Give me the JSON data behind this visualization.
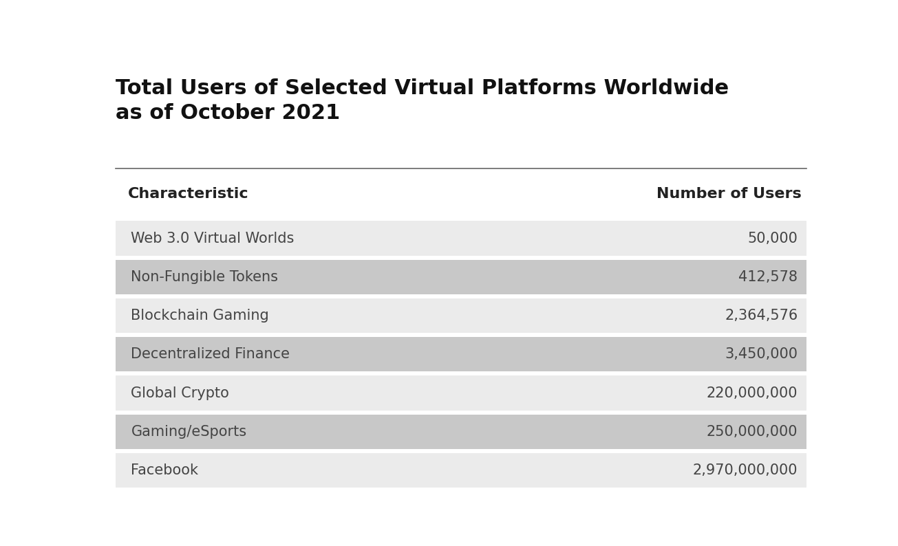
{
  "title": "Total Users of Selected Virtual Platforms Worldwide\nas of October 2021",
  "col1_header": "Characteristic",
  "col2_header": "Number of Users",
  "rows": [
    {
      "label": "Web 3.0 Virtual Worlds",
      "value": "50,000",
      "bg": "#ebebeb"
    },
    {
      "label": "Non-Fungible Tokens",
      "value": "412,578",
      "bg": "#c8c8c8"
    },
    {
      "label": "Blockchain Gaming",
      "value": "2,364,576",
      "bg": "#ebebeb"
    },
    {
      "label": "Decentralized Finance",
      "value": "3,450,000",
      "bg": "#c8c8c8"
    },
    {
      "label": "Global Crypto",
      "value": "220,000,000",
      "bg": "#ebebeb"
    },
    {
      "label": "Gaming/eSports",
      "value": "250,000,000",
      "bg": "#c8c8c8"
    },
    {
      "label": "Facebook",
      "value": "2,970,000,000",
      "bg": "#ebebeb"
    }
  ],
  "title_fontsize": 22,
  "header_fontsize": 16,
  "row_fontsize": 15,
  "bg_color": "#ffffff",
  "title_color": "#111111",
  "header_color": "#222222",
  "row_text_color": "#444444",
  "separator_color": "#666666"
}
